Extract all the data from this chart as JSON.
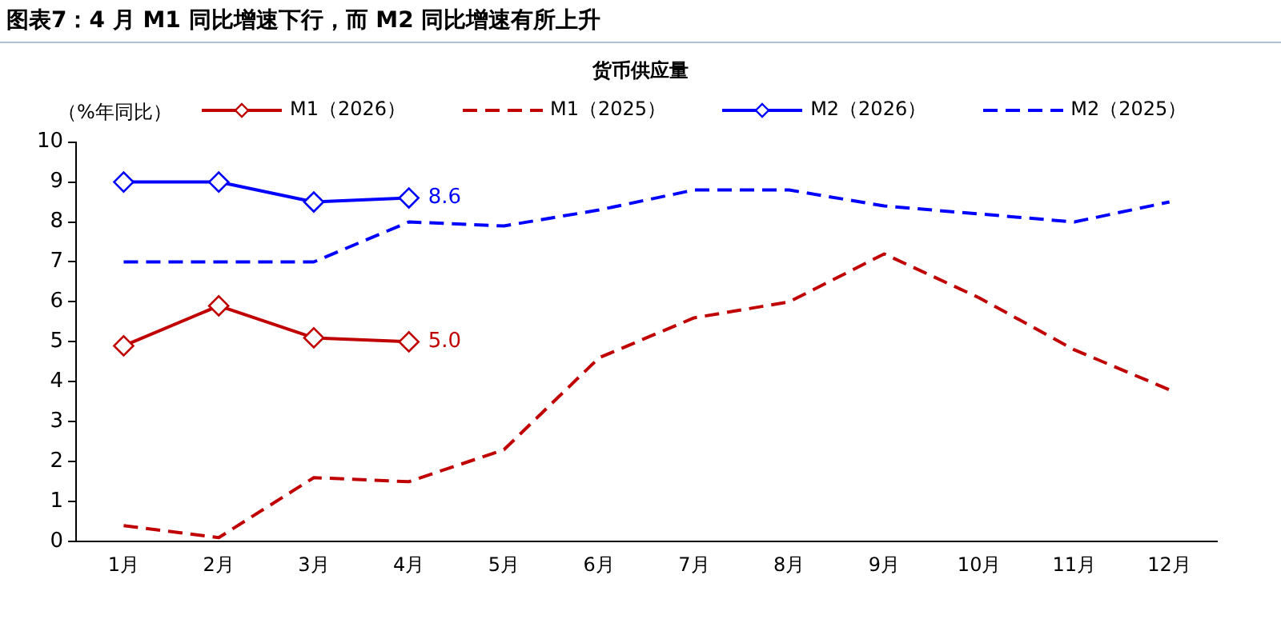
{
  "chart_data": {
    "type": "line",
    "title": "图表7：4 月 M1 同比增速下行，而 M2 同比增速有所上升",
    "subtitle": "货币供应量",
    "ylabel": "（%年同比）",
    "categories": [
      "1月",
      "2月",
      "3月",
      "4月",
      "5月",
      "6月",
      "7月",
      "8月",
      "9月",
      "10月",
      "11月",
      "12月"
    ],
    "ylim": [
      0,
      10
    ],
    "yticks": [
      0,
      1,
      2,
      3,
      4,
      5,
      6,
      7,
      8,
      9,
      10
    ],
    "grid": false,
    "legend": "top",
    "series": [
      {
        "name": "M1（2026）",
        "color": "#c00000",
        "marker": "diamond",
        "line_style": "solid",
        "values": [
          4.9,
          5.9,
          5.1,
          5.0,
          null,
          null,
          null,
          null,
          null,
          null,
          null,
          null
        ],
        "value_labels": [
          null,
          null,
          null,
          "5.0",
          null,
          null,
          null,
          null,
          null,
          null,
          null,
          null
        ]
      },
      {
        "name": "M1（2025）",
        "color": "#c00000",
        "marker": "none",
        "line_style": "dashed",
        "values": [
          0.4,
          0.1,
          1.6,
          1.5,
          2.3,
          4.6,
          5.6,
          6.0,
          7.2,
          6.1,
          4.8,
          3.8
        ]
      },
      {
        "name": "M2（2026）",
        "color": "#0000ff",
        "marker": "diamond",
        "line_style": "solid",
        "values": [
          9.0,
          9.0,
          8.5,
          8.6,
          null,
          null,
          null,
          null,
          null,
          null,
          null,
          null
        ],
        "value_labels": [
          null,
          null,
          null,
          "8.6",
          null,
          null,
          null,
          null,
          null,
          null,
          null,
          null
        ]
      },
      {
        "name": "M2（2025）",
        "color": "#0000ff",
        "marker": "none",
        "line_style": "dashed",
        "values": [
          7.0,
          7.0,
          7.0,
          8.0,
          7.9,
          8.3,
          8.8,
          8.8,
          8.4,
          8.2,
          8.0,
          8.5
        ]
      }
    ]
  }
}
